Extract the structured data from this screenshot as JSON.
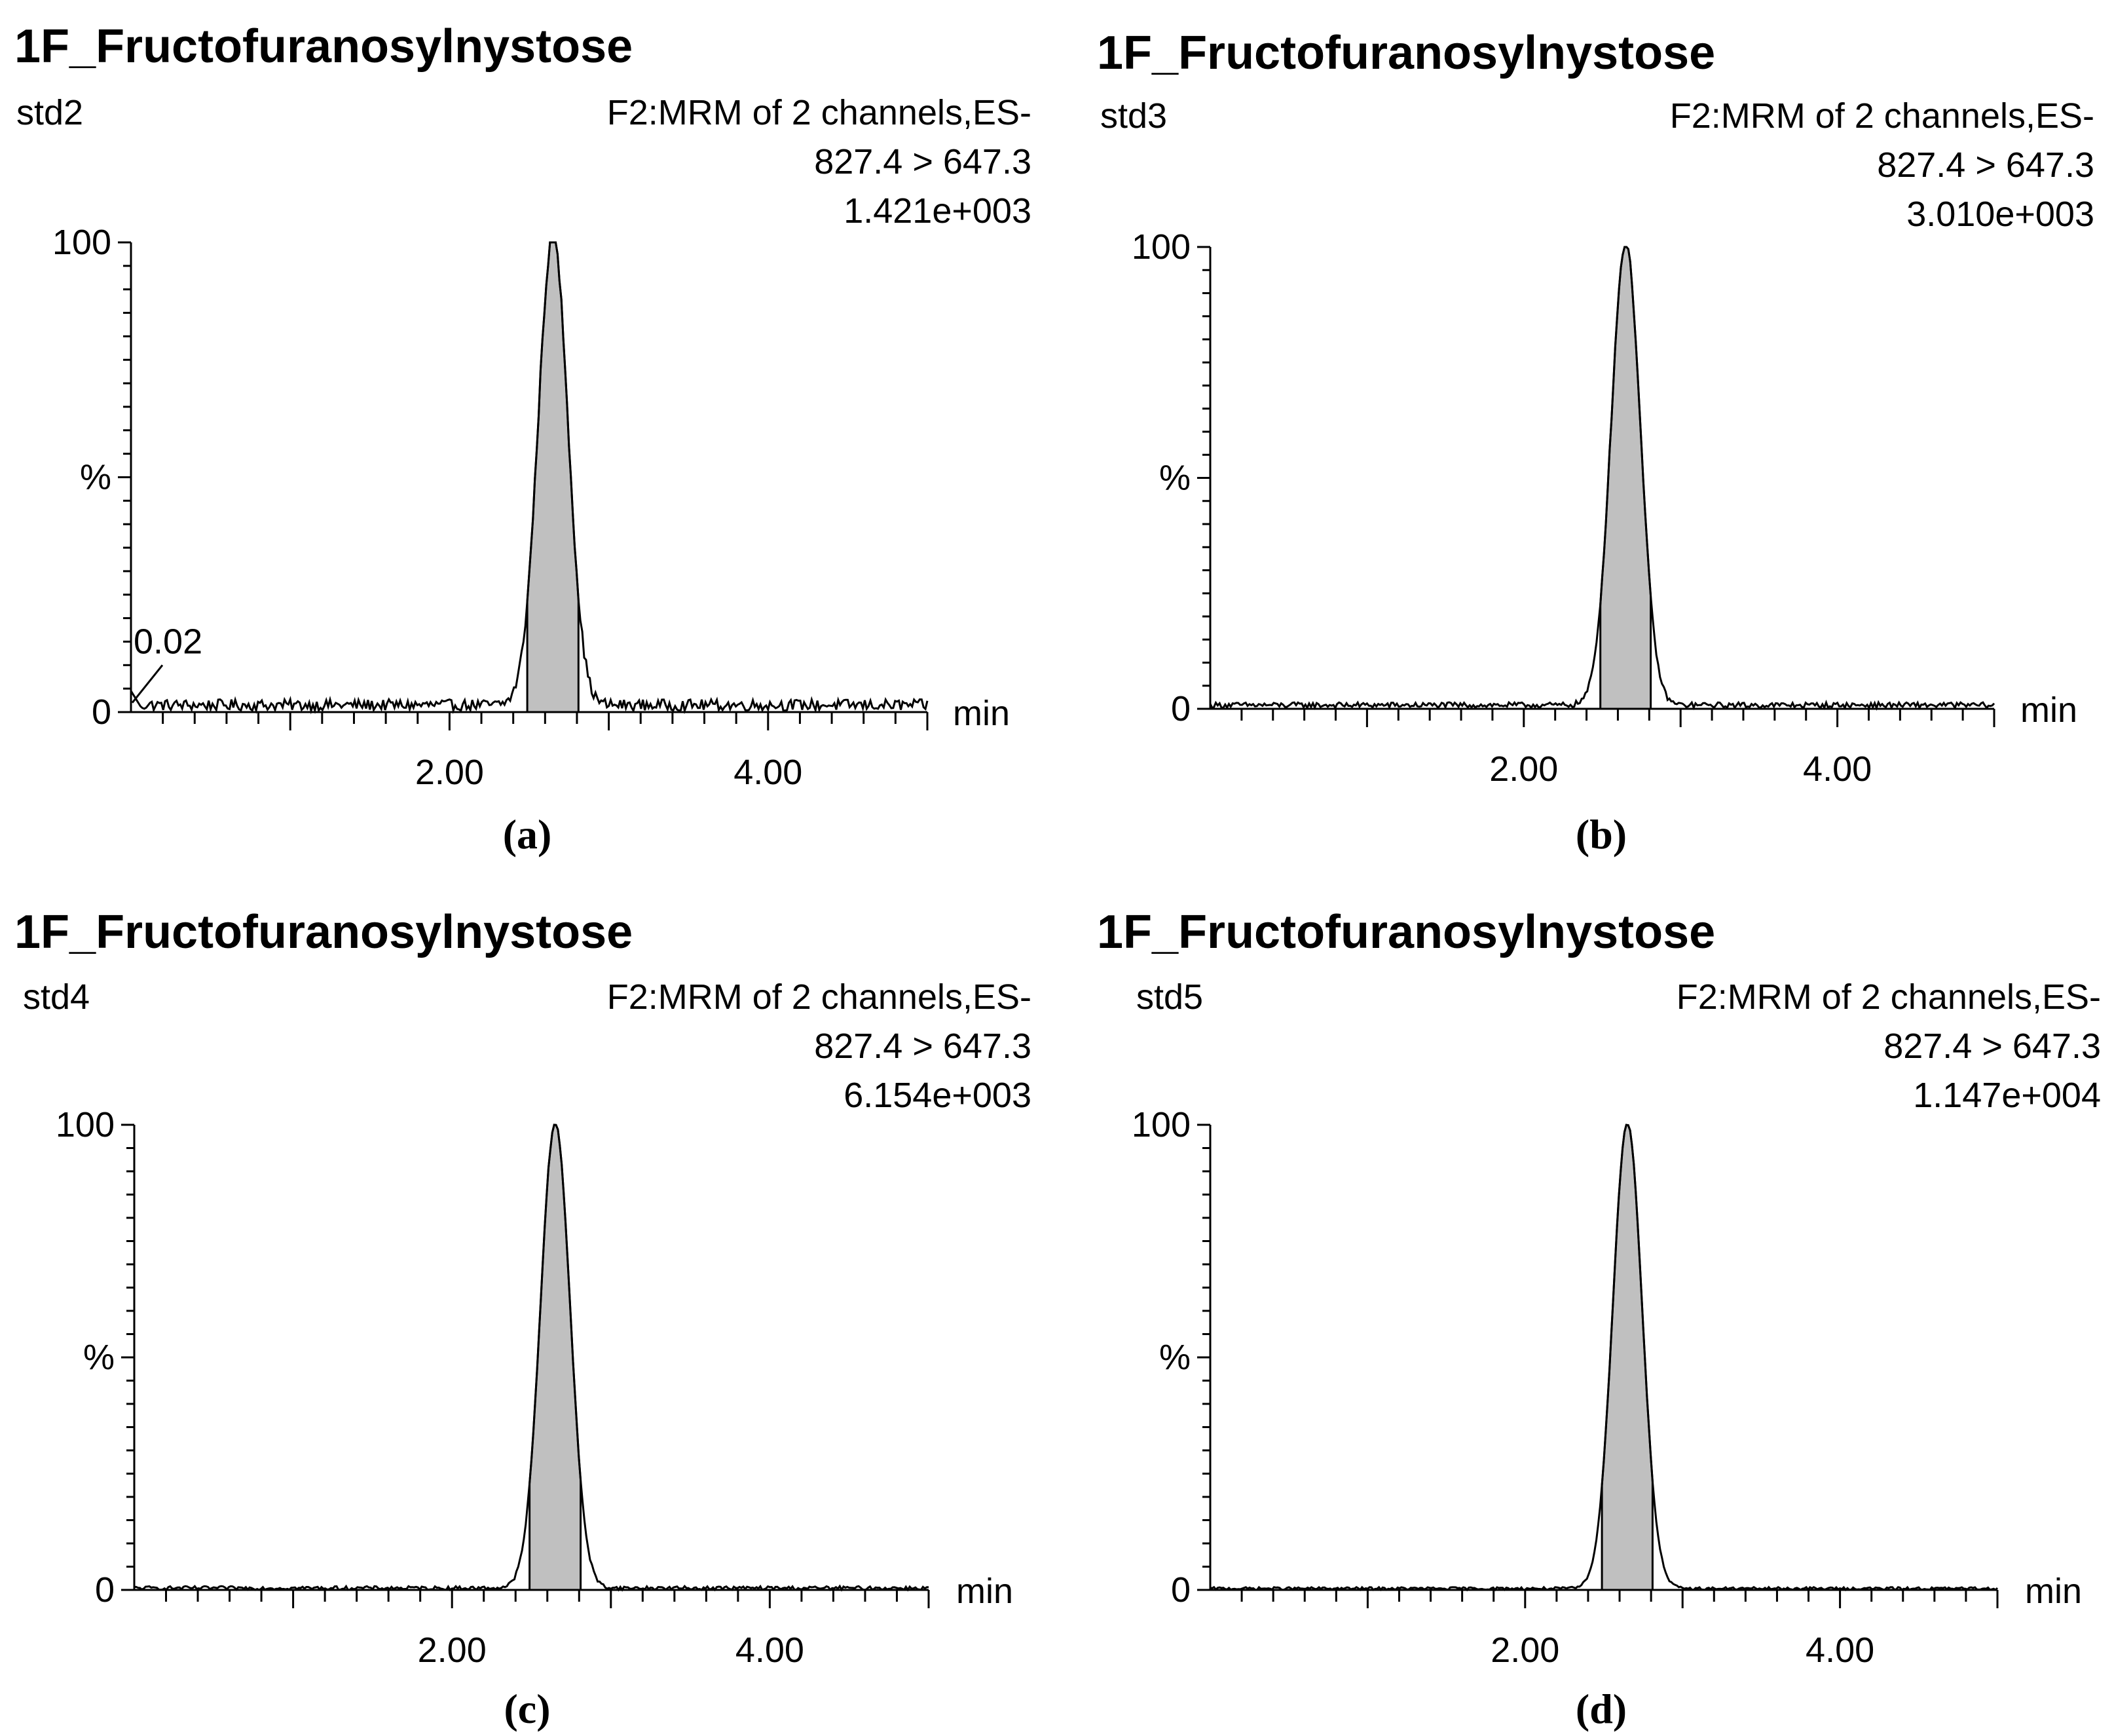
{
  "chart_data": [
    {
      "type": "line",
      "panel": "(a)",
      "title": "1F_Fructofuranosylnystose",
      "sample": "std2",
      "function": "F2:MRM of 2 channels,ES-",
      "transition": "827.4 > 647.3",
      "intensity": "1.421e+003",
      "xlabel": "min",
      "ylabel": "%",
      "xlim": [
        0.0,
        5.0
      ],
      "ylim": [
        0,
        100
      ],
      "x_ticks": [
        "2.00",
        "4.00"
      ],
      "y_ticks": [
        "0",
        "100"
      ],
      "annotation": "0.02",
      "peak": {
        "rt": 2.65,
        "height": 100,
        "width": 0.22
      },
      "baseline_level": 1.5,
      "baseline_noise": 1.2
    },
    {
      "type": "line",
      "panel": "(b)",
      "title": "1F_Fructofuranosylnystose",
      "sample": "std3",
      "function": "F2:MRM of 2 channels,ES-",
      "transition": "827.4 > 647.3",
      "intensity": "3.010e+003",
      "xlabel": "min",
      "ylabel": "%",
      "xlim": [
        0.0,
        5.0
      ],
      "ylim": [
        0,
        100
      ],
      "x_ticks": [
        "2.00",
        "4.00"
      ],
      "y_ticks": [
        "0",
        "100"
      ],
      "peak": {
        "rt": 2.65,
        "height": 100,
        "width": 0.22
      },
      "baseline_level": 0.8,
      "baseline_noise": 0.6
    },
    {
      "type": "line",
      "panel": "(c)",
      "title": "1F_Fructofuranosylnystose",
      "sample": "std4",
      "function": "F2:MRM of 2 channels,ES-",
      "transition": "827.4 > 647.3",
      "intensity": "6.154e+003",
      "xlabel": "min",
      "ylabel": "%",
      "xlim": [
        0.0,
        5.0
      ],
      "ylim": [
        0,
        100
      ],
      "x_ticks": [
        "2.00",
        "4.00"
      ],
      "y_ticks": [
        "0",
        "100"
      ],
      "peak": {
        "rt": 2.65,
        "height": 100,
        "width": 0.22
      },
      "baseline_level": 0.4,
      "baseline_noise": 0.4
    },
    {
      "type": "line",
      "panel": "(d)",
      "title": "1F_Fructofuranosylnystose",
      "sample": "std5",
      "function": "F2:MRM of 2 channels,ES-",
      "transition": "827.4 > 647.3",
      "intensity": "1.147e+004",
      "xlabel": "min",
      "ylabel": "%",
      "xlim": [
        0.0,
        5.0
      ],
      "ylim": [
        0,
        100
      ],
      "x_ticks": [
        "2.00",
        "4.00"
      ],
      "y_ticks": [
        "0",
        "100"
      ],
      "peak": {
        "rt": 2.65,
        "height": 100,
        "width": 0.22
      },
      "baseline_level": 0.3,
      "baseline_noise": 0.3
    }
  ]
}
